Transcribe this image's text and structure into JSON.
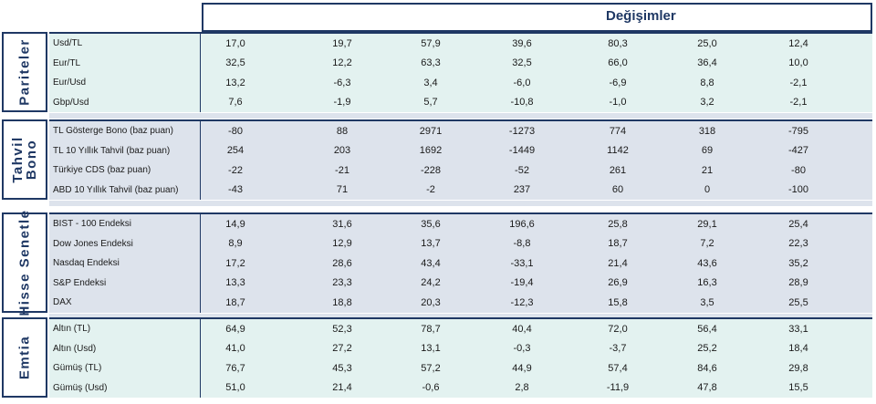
{
  "header": {
    "title": "Değişimler"
  },
  "sections": [
    {
      "key": "pariteler",
      "label": "Pariteler",
      "rows": [
        {
          "name": "Usd/TL",
          "values": [
            "17,0",
            "19,7",
            "57,9",
            "39,6",
            "80,3",
            "25,0",
            "12,4"
          ]
        },
        {
          "name": "Eur/TL",
          "values": [
            "32,5",
            "12,2",
            "63,3",
            "32,5",
            "66,0",
            "36,4",
            "10,0"
          ]
        },
        {
          "name": "Eur/Usd",
          "values": [
            "13,2",
            "-6,3",
            "3,4",
            "-6,0",
            "-6,9",
            "8,8",
            "-2,1"
          ]
        },
        {
          "name": "Gbp/Usd",
          "values": [
            "7,6",
            "-1,9",
            "5,7",
            "-10,8",
            "-1,0",
            "3,2",
            "-2,1"
          ]
        }
      ]
    },
    {
      "key": "tahvil",
      "label": "Tahvil\nBono",
      "rows": [
        {
          "name": "TL Gösterge Bono (baz puan)",
          "values": [
            "-80",
            "88",
            "2971",
            "-1273",
            "774",
            "318",
            "-795"
          ]
        },
        {
          "name": "TL 10 Yıllık Tahvil (baz puan)",
          "values": [
            "254",
            "203",
            "1692",
            "-1449",
            "1142",
            "69",
            "-427"
          ]
        },
        {
          "name": "Türkiye CDS (baz puan)",
          "values": [
            "-22",
            "-21",
            "-228",
            "-52",
            "261",
            "21",
            "-80"
          ]
        },
        {
          "name": "ABD 10 Yıllık Tahvil  (baz puan)",
          "values": [
            "-43",
            "71",
            "-2",
            "237",
            "60",
            "0",
            "-100"
          ]
        }
      ]
    },
    {
      "key": "hisse",
      "label": "Hisse Senetle",
      "rows": [
        {
          "name": "BIST - 100 Endeksi",
          "values": [
            "14,9",
            "31,6",
            "35,6",
            "196,6",
            "25,8",
            "29,1",
            "25,4"
          ]
        },
        {
          "name": "Dow Jones Endeksi",
          "values": [
            "8,9",
            "12,9",
            "13,7",
            "-8,8",
            "18,7",
            "7,2",
            "22,3"
          ]
        },
        {
          "name": "Nasdaq Endeksi",
          "values": [
            "17,2",
            "28,6",
            "43,4",
            "-33,1",
            "21,4",
            "43,6",
            "35,2"
          ]
        },
        {
          "name": "S&P Endeksi",
          "values": [
            "13,3",
            "23,3",
            "24,2",
            "-19,4",
            "26,9",
            "16,3",
            "28,9"
          ]
        },
        {
          "name": "DAX",
          "values": [
            "18,7",
            "18,8",
            "20,3",
            "-12,3",
            "15,8",
            "3,5",
            "25,5"
          ]
        }
      ]
    },
    {
      "key": "emtia",
      "label": "Emtia",
      "rows": [
        {
          "name": "Altın (TL)",
          "values": [
            "64,9",
            "52,3",
            "78,7",
            "40,4",
            "72,0",
            "56,4",
            "33,1"
          ]
        },
        {
          "name": "Altın (Usd)",
          "values": [
            "41,0",
            "27,2",
            "13,1",
            "-0,3",
            "-3,7",
            "25,2",
            "18,4"
          ]
        },
        {
          "name": "Gümüş (TL)",
          "values": [
            "76,7",
            "45,3",
            "57,2",
            "44,9",
            "57,4",
            "84,6",
            "29,8"
          ]
        },
        {
          "name": "Gümüş (Usd)",
          "values": [
            "51,0",
            "21,4",
            "-0,6",
            "2,8",
            "-11,9",
            "47,8",
            "15,5"
          ]
        }
      ]
    }
  ]
}
